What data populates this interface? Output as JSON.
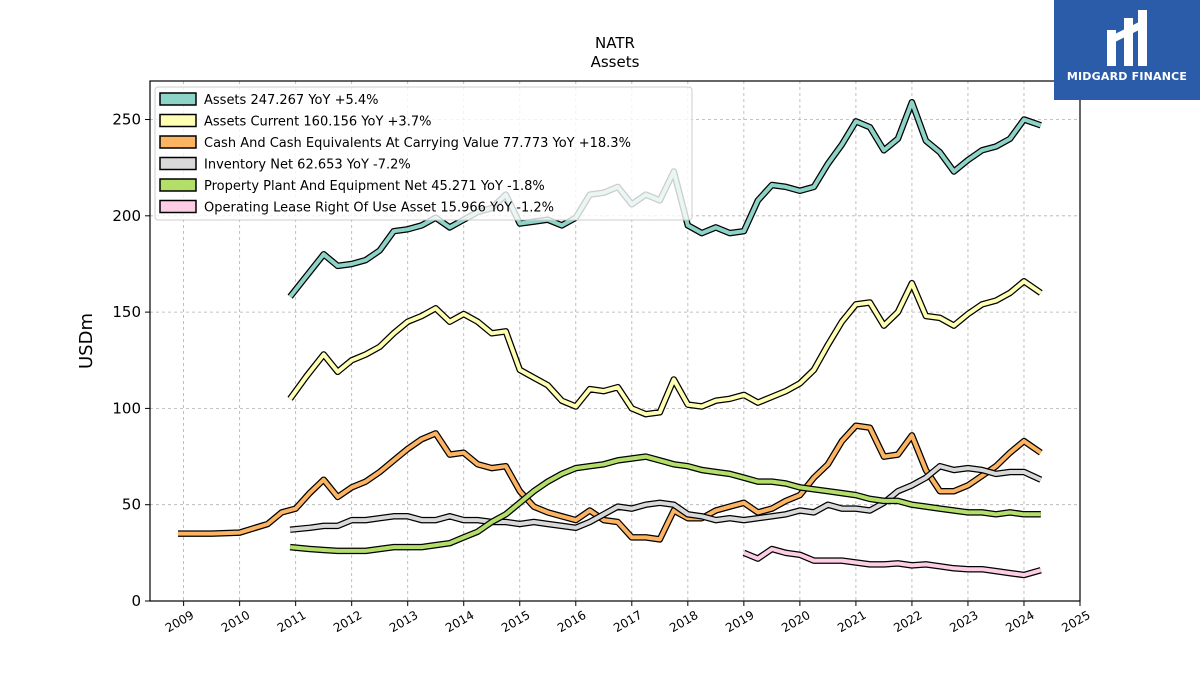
{
  "logo": {
    "text": "MIDGARD FINANCE"
  },
  "chart_data": {
    "type": "line",
    "title": "NATR",
    "subtitle": "Assets",
    "ylabel": "USDm",
    "xlabel": "",
    "xlim": [
      2008.4,
      2025.0
    ],
    "ylim": [
      0,
      270
    ],
    "x_ticks": [
      2009,
      2010,
      2011,
      2012,
      2013,
      2014,
      2015,
      2016,
      2017,
      2018,
      2019,
      2020,
      2021,
      2022,
      2023,
      2024,
      2025
    ],
    "y_ticks": [
      0,
      50,
      100,
      150,
      200,
      250
    ],
    "grid": true,
    "legend_position": "top-left",
    "series": [
      {
        "name": "Assets  247.267 YoY +5.4%",
        "color": "#8dd3c7",
        "points": [
          [
            2010.9,
            158
          ],
          [
            2011.2,
            169
          ],
          [
            2011.5,
            180
          ],
          [
            2011.75,
            174
          ],
          [
            2012.0,
            175
          ],
          [
            2012.25,
            177
          ],
          [
            2012.5,
            182
          ],
          [
            2012.75,
            192
          ],
          [
            2013.0,
            193
          ],
          [
            2013.25,
            195
          ],
          [
            2013.5,
            199
          ],
          [
            2013.75,
            194
          ],
          [
            2014.0,
            198
          ],
          [
            2014.25,
            202
          ],
          [
            2014.5,
            204
          ],
          [
            2014.75,
            211
          ],
          [
            2015.0,
            196
          ],
          [
            2015.25,
            197
          ],
          [
            2015.5,
            198
          ],
          [
            2015.75,
            195
          ],
          [
            2016.0,
            199
          ],
          [
            2016.25,
            211
          ],
          [
            2016.5,
            212
          ],
          [
            2016.75,
            215
          ],
          [
            2017.0,
            206
          ],
          [
            2017.25,
            211
          ],
          [
            2017.5,
            208
          ],
          [
            2017.75,
            223
          ],
          [
            2018.0,
            195
          ],
          [
            2018.25,
            191
          ],
          [
            2018.5,
            194
          ],
          [
            2018.75,
            191
          ],
          [
            2019.0,
            192
          ],
          [
            2019.25,
            208
          ],
          [
            2019.5,
            216
          ],
          [
            2019.75,
            215
          ],
          [
            2020.0,
            213
          ],
          [
            2020.25,
            215
          ],
          [
            2020.5,
            227
          ],
          [
            2020.75,
            237
          ],
          [
            2021.0,
            249
          ],
          [
            2021.25,
            246
          ],
          [
            2021.5,
            234
          ],
          [
            2021.75,
            240
          ],
          [
            2022.0,
            259
          ],
          [
            2022.25,
            239
          ],
          [
            2022.5,
            233
          ],
          [
            2022.75,
            223
          ],
          [
            2023.0,
            229
          ],
          [
            2023.25,
            234
          ],
          [
            2023.5,
            236
          ],
          [
            2023.75,
            240
          ],
          [
            2024.0,
            250
          ],
          [
            2024.3,
            247
          ]
        ]
      },
      {
        "name": "Assets Current  160.156 YoY +3.7%",
        "color": "#ffffb3",
        "points": [
          [
            2010.9,
            105
          ],
          [
            2011.2,
            117
          ],
          [
            2011.5,
            128
          ],
          [
            2011.75,
            119
          ],
          [
            2012.0,
            125
          ],
          [
            2012.25,
            128
          ],
          [
            2012.5,
            132
          ],
          [
            2012.75,
            139
          ],
          [
            2013.0,
            145
          ],
          [
            2013.25,
            148
          ],
          [
            2013.5,
            152
          ],
          [
            2013.75,
            145
          ],
          [
            2014.0,
            149
          ],
          [
            2014.25,
            145
          ],
          [
            2014.5,
            139
          ],
          [
            2014.75,
            140
          ],
          [
            2015.0,
            120
          ],
          [
            2015.25,
            116
          ],
          [
            2015.5,
            112
          ],
          [
            2015.75,
            104
          ],
          [
            2016.0,
            101
          ],
          [
            2016.25,
            110
          ],
          [
            2016.5,
            109
          ],
          [
            2016.75,
            111
          ],
          [
            2017.0,
            100
          ],
          [
            2017.25,
            97
          ],
          [
            2017.5,
            98
          ],
          [
            2017.75,
            115
          ],
          [
            2018.0,
            102
          ],
          [
            2018.25,
            101
          ],
          [
            2018.5,
            104
          ],
          [
            2018.75,
            105
          ],
          [
            2019.0,
            107
          ],
          [
            2019.25,
            103
          ],
          [
            2019.5,
            106
          ],
          [
            2019.75,
            109
          ],
          [
            2020.0,
            113
          ],
          [
            2020.25,
            120
          ],
          [
            2020.5,
            133
          ],
          [
            2020.75,
            145
          ],
          [
            2021.0,
            154
          ],
          [
            2021.25,
            155
          ],
          [
            2021.5,
            143
          ],
          [
            2021.75,
            150
          ],
          [
            2022.0,
            165
          ],
          [
            2022.25,
            148
          ],
          [
            2022.5,
            147
          ],
          [
            2022.75,
            143
          ],
          [
            2023.0,
            149
          ],
          [
            2023.25,
            154
          ],
          [
            2023.5,
            156
          ],
          [
            2023.75,
            160
          ],
          [
            2024.0,
            166
          ],
          [
            2024.3,
            160
          ]
        ]
      },
      {
        "name": "Cash And Cash Equivalents At Carrying Value  77.773 YoY +18.3%",
        "color": "#fdb462",
        "points": [
          [
            2008.9,
            35
          ],
          [
            2009.25,
            35
          ],
          [
            2009.5,
            35
          ],
          [
            2010.0,
            35.5
          ],
          [
            2010.5,
            40
          ],
          [
            2010.75,
            46
          ],
          [
            2011.0,
            48
          ],
          [
            2011.25,
            56
          ],
          [
            2011.5,
            63
          ],
          [
            2011.75,
            54
          ],
          [
            2012.0,
            59
          ],
          [
            2012.25,
            62
          ],
          [
            2012.5,
            67
          ],
          [
            2012.75,
            73
          ],
          [
            2013.0,
            79
          ],
          [
            2013.25,
            84
          ],
          [
            2013.5,
            87
          ],
          [
            2013.75,
            76
          ],
          [
            2014.0,
            77
          ],
          [
            2014.25,
            71
          ],
          [
            2014.5,
            69
          ],
          [
            2014.75,
            70
          ],
          [
            2015.0,
            57
          ],
          [
            2015.25,
            49
          ],
          [
            2015.5,
            46
          ],
          [
            2015.75,
            44
          ],
          [
            2016.0,
            42
          ],
          [
            2016.25,
            47
          ],
          [
            2016.5,
            42
          ],
          [
            2016.75,
            41
          ],
          [
            2017.0,
            33
          ],
          [
            2017.25,
            33
          ],
          [
            2017.5,
            32
          ],
          [
            2017.75,
            47
          ],
          [
            2018.0,
            43
          ],
          [
            2018.25,
            43
          ],
          [
            2018.5,
            47
          ],
          [
            2018.75,
            49
          ],
          [
            2019.0,
            51
          ],
          [
            2019.25,
            46
          ],
          [
            2019.5,
            48
          ],
          [
            2019.75,
            52
          ],
          [
            2020.0,
            55
          ],
          [
            2020.25,
            64
          ],
          [
            2020.5,
            71
          ],
          [
            2020.75,
            83
          ],
          [
            2021.0,
            91
          ],
          [
            2021.25,
            90
          ],
          [
            2021.5,
            75
          ],
          [
            2021.75,
            76
          ],
          [
            2022.0,
            86
          ],
          [
            2022.25,
            68
          ],
          [
            2022.5,
            57
          ],
          [
            2022.75,
            57
          ],
          [
            2023.0,
            60
          ],
          [
            2023.25,
            65
          ],
          [
            2023.5,
            70
          ],
          [
            2023.75,
            77
          ],
          [
            2024.0,
            83
          ],
          [
            2024.3,
            77
          ]
        ]
      },
      {
        "name": "Inventory Net  62.653 YoY -7.2%",
        "color": "#d9d9d9",
        "points": [
          [
            2010.9,
            37
          ],
          [
            2011.25,
            38
          ],
          [
            2011.5,
            39
          ],
          [
            2011.75,
            39
          ],
          [
            2012.0,
            42
          ],
          [
            2012.25,
            42
          ],
          [
            2012.5,
            43
          ],
          [
            2012.75,
            44
          ],
          [
            2013.0,
            44
          ],
          [
            2013.25,
            42
          ],
          [
            2013.5,
            42
          ],
          [
            2013.75,
            44
          ],
          [
            2014.0,
            42
          ],
          [
            2014.25,
            42
          ],
          [
            2014.5,
            41
          ],
          [
            2014.75,
            41
          ],
          [
            2015.0,
            40
          ],
          [
            2015.25,
            41
          ],
          [
            2015.5,
            40
          ],
          [
            2015.75,
            39
          ],
          [
            2016.0,
            38
          ],
          [
            2016.25,
            41
          ],
          [
            2016.5,
            45
          ],
          [
            2016.75,
            49
          ],
          [
            2017.0,
            48
          ],
          [
            2017.25,
            50
          ],
          [
            2017.5,
            51
          ],
          [
            2017.75,
            50
          ],
          [
            2018.0,
            45
          ],
          [
            2018.25,
            44
          ],
          [
            2018.5,
            42
          ],
          [
            2018.75,
            43
          ],
          [
            2019.0,
            42
          ],
          [
            2019.25,
            43
          ],
          [
            2019.5,
            44
          ],
          [
            2019.75,
            45
          ],
          [
            2020.0,
            47
          ],
          [
            2020.25,
            46
          ],
          [
            2020.5,
            50
          ],
          [
            2020.75,
            48
          ],
          [
            2021.0,
            48
          ],
          [
            2021.25,
            47
          ],
          [
            2021.5,
            51
          ],
          [
            2021.75,
            57
          ],
          [
            2022.0,
            60
          ],
          [
            2022.25,
            64
          ],
          [
            2022.5,
            70
          ],
          [
            2022.75,
            68
          ],
          [
            2023.0,
            69
          ],
          [
            2023.25,
            68
          ],
          [
            2023.5,
            66
          ],
          [
            2023.75,
            67
          ],
          [
            2024.0,
            67
          ],
          [
            2024.3,
            63
          ]
        ]
      },
      {
        "name": "Property Plant And Equipment Net  45.271 YoY -1.8%",
        "color": "#b3de69",
        "points": [
          [
            2010.9,
            28
          ],
          [
            2011.25,
            27
          ],
          [
            2011.5,
            26.5
          ],
          [
            2011.75,
            26
          ],
          [
            2012.0,
            26
          ],
          [
            2012.25,
            26
          ],
          [
            2012.5,
            27
          ],
          [
            2012.75,
            28
          ],
          [
            2013.0,
            28
          ],
          [
            2013.25,
            28
          ],
          [
            2013.5,
            29
          ],
          [
            2013.75,
            30
          ],
          [
            2014.0,
            33
          ],
          [
            2014.25,
            36
          ],
          [
            2014.5,
            41
          ],
          [
            2014.75,
            45
          ],
          [
            2015.0,
            51
          ],
          [
            2015.25,
            57
          ],
          [
            2015.5,
            62
          ],
          [
            2015.75,
            66
          ],
          [
            2016.0,
            69
          ],
          [
            2016.25,
            70
          ],
          [
            2016.5,
            71
          ],
          [
            2016.75,
            73
          ],
          [
            2017.0,
            74
          ],
          [
            2017.25,
            75
          ],
          [
            2017.5,
            73
          ],
          [
            2017.75,
            71
          ],
          [
            2018.0,
            70
          ],
          [
            2018.25,
            68
          ],
          [
            2018.5,
            67
          ],
          [
            2018.75,
            66
          ],
          [
            2019.0,
            64
          ],
          [
            2019.25,
            62
          ],
          [
            2019.5,
            62
          ],
          [
            2019.75,
            61
          ],
          [
            2020.0,
            59
          ],
          [
            2020.25,
            58
          ],
          [
            2020.5,
            57
          ],
          [
            2020.75,
            56
          ],
          [
            2021.0,
            55
          ],
          [
            2021.25,
            53
          ],
          [
            2021.5,
            52
          ],
          [
            2021.75,
            52
          ],
          [
            2022.0,
            50
          ],
          [
            2022.25,
            49
          ],
          [
            2022.5,
            48
          ],
          [
            2022.75,
            47
          ],
          [
            2023.0,
            46
          ],
          [
            2023.25,
            46
          ],
          [
            2023.5,
            45
          ],
          [
            2023.75,
            46
          ],
          [
            2024.0,
            45
          ],
          [
            2024.3,
            45
          ]
        ]
      },
      {
        "name": "Operating Lease Right Of Use Asset  15.966 YoY -1.2%",
        "color": "#fccde5",
        "points": [
          [
            2019.0,
            25
          ],
          [
            2019.25,
            22
          ],
          [
            2019.5,
            27
          ],
          [
            2019.75,
            25
          ],
          [
            2020.0,
            24
          ],
          [
            2020.25,
            21
          ],
          [
            2020.5,
            21
          ],
          [
            2020.75,
            21
          ],
          [
            2021.0,
            20
          ],
          [
            2021.25,
            19
          ],
          [
            2021.5,
            19
          ],
          [
            2021.75,
            19.5
          ],
          [
            2022.0,
            18.5
          ],
          [
            2022.25,
            19
          ],
          [
            2022.5,
            18
          ],
          [
            2022.75,
            17
          ],
          [
            2023.0,
            16.5
          ],
          [
            2023.25,
            16.5
          ],
          [
            2023.5,
            15.5
          ],
          [
            2023.75,
            14.5
          ],
          [
            2024.0,
            13.5
          ],
          [
            2024.3,
            16
          ]
        ]
      }
    ]
  }
}
